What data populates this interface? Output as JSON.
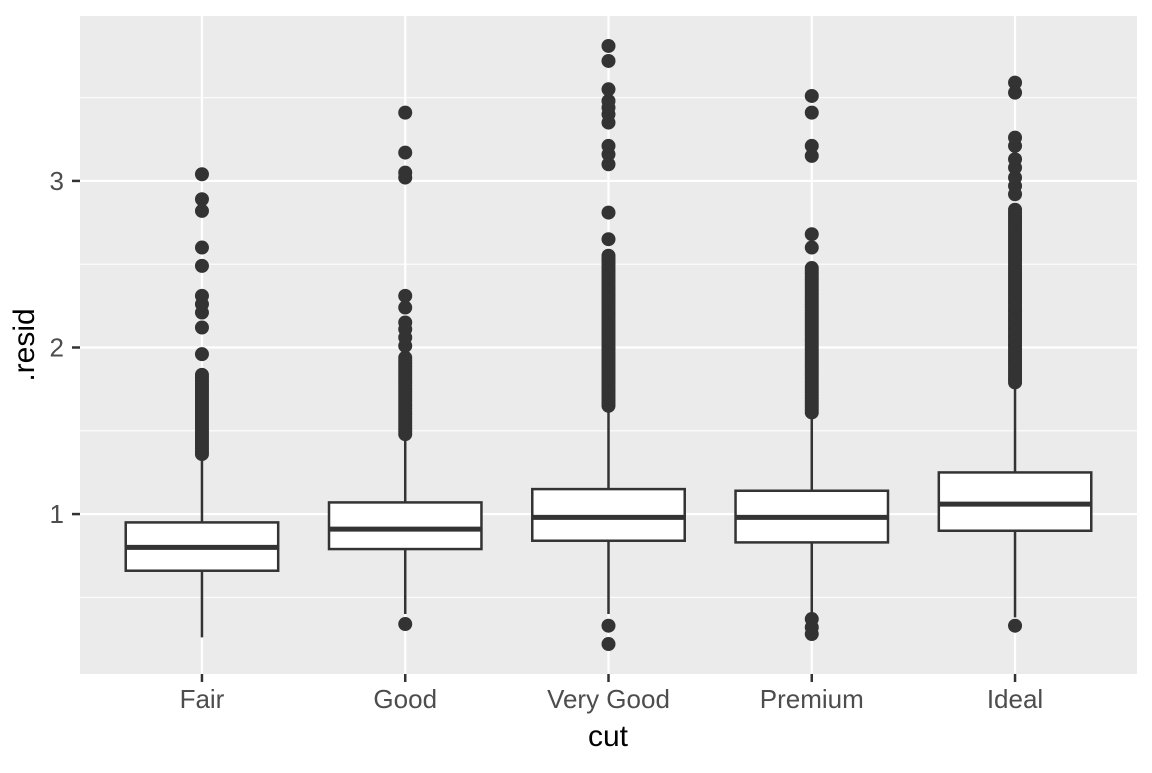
{
  "chart_data": {
    "type": "boxplot",
    "title": "",
    "xlabel": "cut",
    "ylabel": ".resid",
    "x_categories": [
      "Fair",
      "Good",
      "Very Good",
      "Premium",
      "Ideal"
    ],
    "y_ticks": [
      1,
      2,
      3
    ],
    "y_tick_labels": [
      "1",
      "2",
      "3"
    ],
    "y_minor_ticks": [
      0.5,
      1.5,
      2.5,
      3.5
    ],
    "ylim": [
      0.04,
      3.99
    ],
    "grid": "on",
    "legend": "none",
    "series": [
      {
        "category": "Fair",
        "q1": 0.66,
        "median": 0.8,
        "q3": 0.95,
        "whisker_low": 0.26,
        "whisker_high": 1.35,
        "outliers_low": [],
        "outlier_dense_high": [
          1.36,
          1.85
        ],
        "outliers_high": [
          1.96,
          2.12,
          2.21,
          2.26,
          2.31,
          2.49,
          2.6,
          2.82,
          2.89,
          3.04
        ]
      },
      {
        "category": "Good",
        "q1": 0.79,
        "median": 0.91,
        "q3": 1.07,
        "whisker_low": 0.4,
        "whisker_high": 1.47,
        "outliers_low": [
          0.34
        ],
        "outlier_dense_high": [
          1.48,
          1.95
        ],
        "outliers_high": [
          2.01,
          2.06,
          2.11,
          2.15,
          2.24,
          2.31,
          3.02,
          3.05,
          3.17,
          3.41
        ]
      },
      {
        "category": "Very Good",
        "q1": 0.84,
        "median": 0.98,
        "q3": 1.15,
        "whisker_low": 0.4,
        "whisker_high": 1.64,
        "outliers_low": [
          0.22,
          0.33
        ],
        "outlier_dense_high": [
          1.65,
          2.56
        ],
        "outliers_high": [
          2.65,
          2.81,
          3.1,
          3.16,
          3.21,
          3.35,
          3.4,
          3.44,
          3.48,
          3.55,
          3.72,
          3.81
        ]
      },
      {
        "category": "Premium",
        "q1": 0.83,
        "median": 0.98,
        "q3": 1.14,
        "whisker_low": 0.4,
        "whisker_high": 1.6,
        "outliers_low": [
          0.28,
          0.32,
          0.37
        ],
        "outlier_dense_high": [
          1.61,
          2.49
        ],
        "outliers_high": [
          2.6,
          2.68,
          3.15,
          3.21,
          3.41,
          3.51
        ]
      },
      {
        "category": "Ideal",
        "q1": 0.9,
        "median": 1.06,
        "q3": 1.25,
        "whisker_low": 0.38,
        "whisker_high": 1.78,
        "outliers_low": [
          0.33
        ],
        "outlier_dense_high": [
          1.79,
          2.84
        ],
        "outliers_high": [
          2.92,
          2.97,
          3.02,
          3.08,
          3.13,
          3.21,
          3.26,
          3.53,
          3.59
        ]
      }
    ],
    "colors": {
      "panel_background": "#EBEBEB",
      "gridline": "#FFFFFF",
      "box_stroke": "#333333",
      "box_fill": "#FFFFFF",
      "outlier_dot": "#333333",
      "tick_mark": "#333333",
      "tick_label": "#4D4D4D",
      "axis_title": "#000000"
    }
  }
}
